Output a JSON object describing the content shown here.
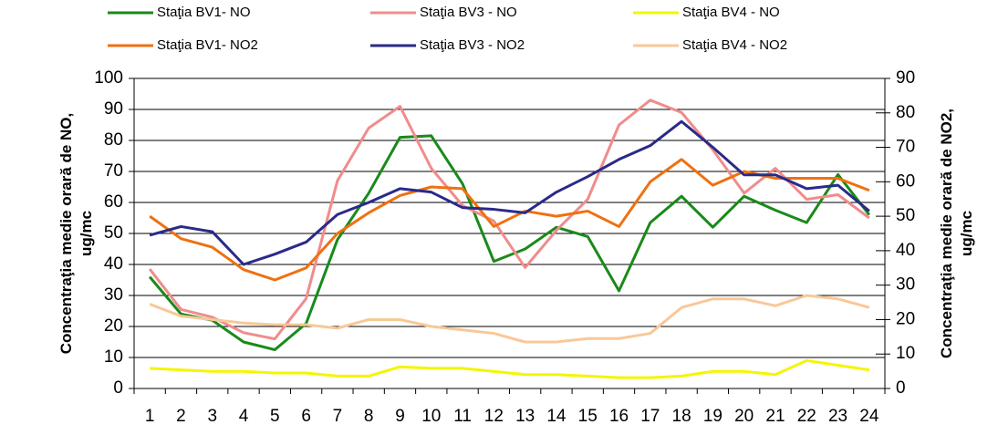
{
  "chart_data": {
    "type": "line",
    "ylabel": [
      "Concentraţia medie orară de NO,",
      "ug/mc"
    ],
    "y2label": [
      "Concentraţia medie orară de NO2,",
      "ug/mc"
    ],
    "categories": [
      1,
      2,
      3,
      4,
      5,
      6,
      7,
      8,
      9,
      10,
      11,
      12,
      13,
      14,
      15,
      16,
      17,
      18,
      19,
      20,
      21,
      22,
      23,
      24
    ],
    "ylim": [
      0,
      100
    ],
    "yticks": [
      0,
      10,
      20,
      30,
      40,
      50,
      60,
      70,
      80,
      90,
      100
    ],
    "y2lim": [
      0,
      90
    ],
    "y2ticks": [
      0,
      10,
      20,
      30,
      40,
      50,
      60,
      70,
      80,
      90
    ],
    "grid": true,
    "series": [
      {
        "name": "Staţia BV1- NO",
        "color": "#1a8a1a",
        "values": [
          36,
          24,
          22,
          15,
          12.5,
          21,
          48,
          63,
          81,
          81.5,
          66,
          41,
          45,
          52,
          49,
          31.5,
          53.5,
          62,
          52,
          62,
          57.5,
          53.5,
          69,
          56
        ]
      },
      {
        "name": "Staţia BV3 - NO",
        "color": "#f08c8c",
        "values": [
          38.5,
          25.5,
          23,
          18,
          16,
          29,
          67,
          84,
          91,
          71,
          59,
          54,
          39,
          51,
          61,
          85,
          93,
          89,
          77,
          63,
          71,
          61,
          62.5,
          55
        ]
      },
      {
        "name": "Staţia BV4 - NO",
        "color": "#f5f500",
        "values": [
          6.5,
          6,
          5.5,
          5.5,
          5,
          5,
          4,
          4,
          7,
          6.5,
          6.5,
          5.5,
          4.5,
          4.5,
          4,
          3.5,
          3.5,
          4,
          5.5,
          5.5,
          4.5,
          9,
          7.5,
          6
        ]
      },
      {
        "name": "Staţia BV1- NO2",
        "color": "#f07010",
        "axis": "y2",
        "values": [
          50,
          43.5,
          41,
          34.5,
          31.5,
          35,
          45,
          51,
          56,
          58.5,
          58,
          47,
          51.5,
          50,
          51.5,
          47,
          60,
          66.5,
          59,
          63,
          61,
          61,
          61,
          57.5
        ]
      },
      {
        "name": "Staţia BV3 - NO2",
        "color": "#2a2a8a",
        "axis": "y2",
        "values": [
          44.5,
          47,
          45.5,
          36,
          39,
          42.5,
          50.5,
          54,
          58,
          57,
          52.5,
          52,
          51,
          57,
          61.5,
          66.5,
          70.5,
          77.5,
          70,
          62,
          62,
          58,
          59,
          51.5
        ]
      },
      {
        "name": "Staţia BV4 - NO2",
        "color": "#f8c898",
        "axis": "y2",
        "values": [
          24.5,
          21,
          20,
          19,
          18.5,
          18.5,
          17.5,
          20,
          20,
          18,
          17,
          16,
          13.5,
          13.5,
          14.5,
          14.5,
          16,
          23.5,
          26,
          26,
          24,
          27,
          26,
          23.5
        ]
      }
    ]
  }
}
